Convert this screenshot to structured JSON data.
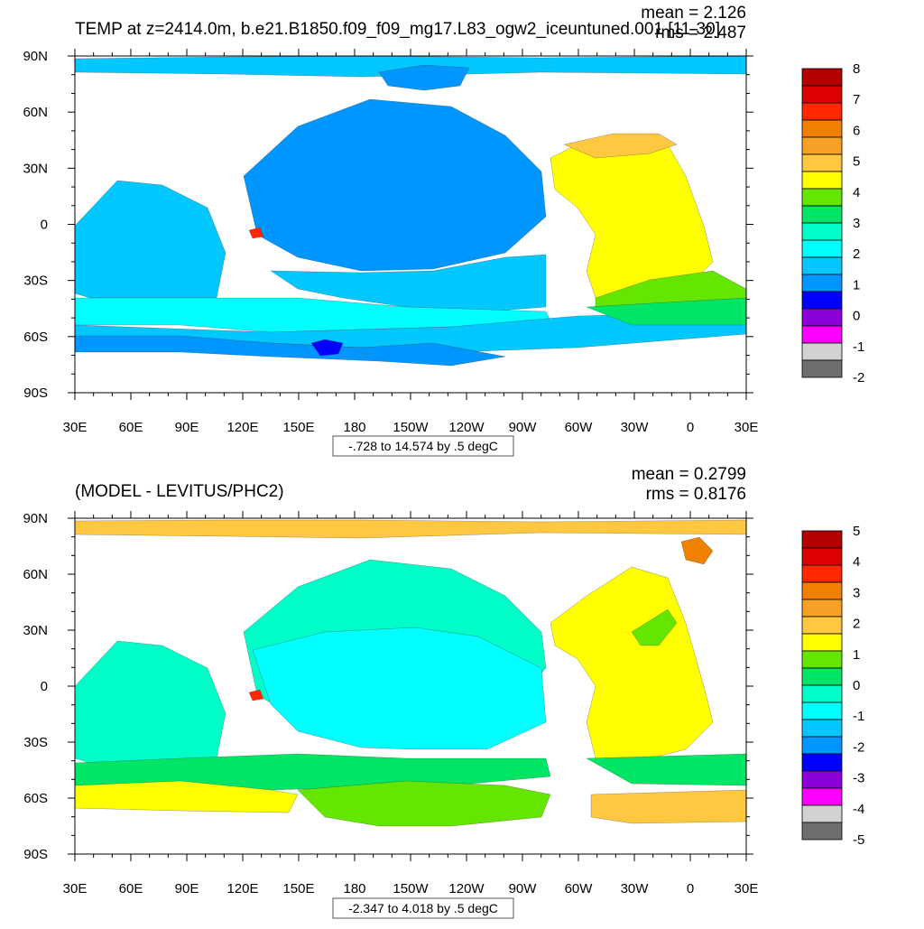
{
  "chart_data": [
    {
      "type": "heatmap",
      "title": "TEMP at z=2414.0m, b.e21.B1850.f09_f09_mg17.L83_ogw2_iceuntuned.001 [11-30]",
      "stats": {
        "mean": "mean = 2.126",
        "rms": "rms = 2.487"
      },
      "range_label": "-.728 to 14.574 by .5 degC",
      "x_ticks": [
        "30E",
        "60E",
        "90E",
        "120E",
        "150E",
        "180",
        "150W",
        "120W",
        "90W",
        "60W",
        "30W",
        "0",
        "30E"
      ],
      "y_ticks": [
        "90N",
        "60N",
        "30N",
        "0",
        "30S",
        "60S",
        "90S"
      ],
      "colorbar": {
        "labels": [
          "8",
          "7",
          "6",
          "5",
          "4",
          "3",
          "2",
          "1",
          "0",
          "-1",
          "-2"
        ],
        "colors": [
          "#b40000",
          "#dc0000",
          "#ff2800",
          "#f08000",
          "#f6a028",
          "#ffc840",
          "#ffff00",
          "#64e600",
          "#00e664",
          "#00ffc8",
          "#00ffff",
          "#00c8ff",
          "#0096ff",
          "#0000ff",
          "#8c00dc",
          "#ff00ff",
          "#d2d2d2",
          "#6e6e6e"
        ]
      }
    },
    {
      "type": "heatmap",
      "title": "(MODEL - LEVITUS/PHC2)",
      "stats": {
        "mean": "mean = 0.2799",
        "rms": "rms = 0.8176"
      },
      "range_label": "-2.347 to 4.018 by .5 degC",
      "x_ticks": [
        "30E",
        "60E",
        "90E",
        "120E",
        "150E",
        "180",
        "150W",
        "120W",
        "90W",
        "60W",
        "30W",
        "0",
        "30E"
      ],
      "y_ticks": [
        "90N",
        "60N",
        "30N",
        "0",
        "30S",
        "60S",
        "90S"
      ],
      "colorbar": {
        "labels": [
          "5",
          "4",
          "3",
          "2",
          "1",
          "0",
          "-1",
          "-2",
          "-3",
          "-4",
          "-5"
        ],
        "colors": [
          "#b40000",
          "#dc0000",
          "#ff2800",
          "#f08000",
          "#f6a028",
          "#ffc840",
          "#ffff00",
          "#64e600",
          "#00e664",
          "#00ffc8",
          "#00ffff",
          "#00c8ff",
          "#0096ff",
          "#0000ff",
          "#8c00dc",
          "#ff00ff",
          "#d2d2d2",
          "#6e6e6e"
        ]
      }
    }
  ]
}
